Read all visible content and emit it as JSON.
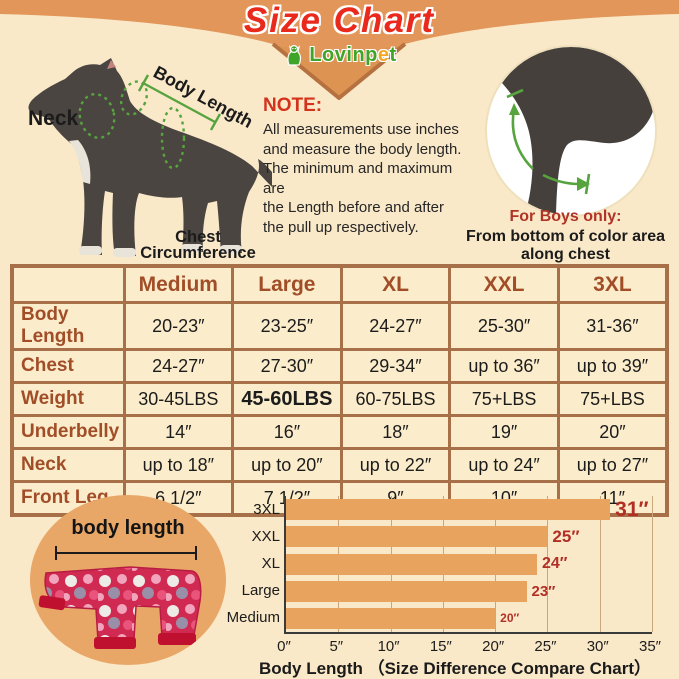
{
  "header": {
    "title": "Size Chart",
    "brand": "Lovinpet"
  },
  "measure_diagram": {
    "neck_label": "Neck",
    "body_length_label": "Body Length",
    "chest_label_line1": "Chest",
    "chest_label_line2": "Circumference"
  },
  "note": {
    "heading": "NOTE:",
    "lines": [
      "All measurements use inches",
      "and measure the body length.",
      "The minimum and maximum are",
      "the Length before and after",
      "the pull up respectively."
    ]
  },
  "boys_note": {
    "heading": "For Boys only:",
    "lines": [
      "From bottom of color area",
      "along chest"
    ]
  },
  "size_table": {
    "columns": [
      "Medium",
      "Large",
      "XL",
      "XXL",
      "3XL"
    ],
    "rows": [
      {
        "label": "Body Length",
        "values": [
          "20-23″",
          "23-25″",
          "24-27″",
          "25-30″",
          "31-36″"
        ]
      },
      {
        "label": "Chest",
        "values": [
          "24-27″",
          "27-30″",
          "29-34″",
          "up to 36″",
          "up to 39″"
        ]
      },
      {
        "label": "Weight",
        "values": [
          "30-45LBS",
          "45-60LBS",
          "60-75LBS",
          "75+LBS",
          "75+LBS"
        ]
      },
      {
        "label": "Underbelly",
        "values": [
          "14″",
          "16″",
          "18″",
          "19″",
          "20″"
        ]
      },
      {
        "label": "Neck",
        "values": [
          "up to 18″",
          "up to 20″",
          "up to 22″",
          "up to 24″",
          "up to 27″"
        ]
      },
      {
        "label": "Front Leg",
        "values": [
          "6 1/2″",
          "7 1/2″",
          "9″",
          "10″",
          "11″"
        ]
      }
    ],
    "emphasized_cell": {
      "row": 2,
      "col": 1
    }
  },
  "garment_diagram": {
    "label": "body length"
  },
  "chart_data": {
    "type": "bar",
    "orientation": "horizontal",
    "categories": [
      "3XL",
      "XXL",
      "XL",
      "Large",
      "Medium"
    ],
    "values": [
      31,
      25,
      24,
      23,
      20
    ],
    "value_labels": [
      "31″",
      "25″",
      "24″",
      "23″",
      "20″"
    ],
    "value_label_sizes": [
      21,
      17,
      16,
      15,
      12
    ],
    "x_ticks": [
      "0″",
      "5″",
      "10″",
      "15″",
      "20″",
      "25″",
      "30″",
      "35″"
    ],
    "x_tick_values": [
      0,
      5,
      10,
      15,
      20,
      25,
      30,
      35
    ],
    "xlim": [
      0,
      35
    ],
    "grid": true,
    "legend": false,
    "xlabel": "Body Length （Size Difference Compare Chart）",
    "bar_color": "#E8A45F",
    "value_label_color": "#B22F26"
  },
  "colors": {
    "background": "#FAE9C9",
    "banner_orange": "#E2965A",
    "banner_edge": "#B5713F",
    "title_red": "#E8291C",
    "brand_green": "#3FA428",
    "brand_accent_orange": "#F5A623",
    "note_red": "#D3321B",
    "boys_red": "#B03327",
    "table_border_brown": "#A87048",
    "table_label_brown": "#A14E28",
    "annotation_green": "#57A33E",
    "dog_gray": "#4A4540",
    "circle_orange": "#E9A767",
    "pajama_pink": "#D12A52"
  }
}
